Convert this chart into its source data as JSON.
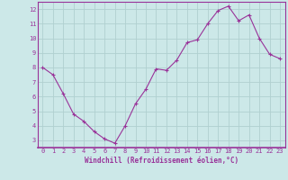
{
  "x": [
    0,
    1,
    2,
    3,
    4,
    5,
    6,
    7,
    8,
    9,
    10,
    11,
    12,
    13,
    14,
    15,
    16,
    17,
    18,
    19,
    20,
    21,
    22,
    23
  ],
  "y": [
    8.0,
    7.5,
    6.2,
    4.8,
    4.3,
    3.6,
    3.1,
    2.8,
    4.0,
    5.5,
    6.5,
    7.9,
    7.8,
    8.5,
    9.7,
    9.9,
    11.0,
    11.9,
    12.2,
    11.2,
    11.6,
    10.0,
    8.9,
    8.6
  ],
  "line_color": "#993399",
  "marker": "+",
  "marker_size": 3,
  "linewidth": 0.8,
  "xlabel": "Windchill (Refroidissement éolien,°C)",
  "xlabel_fontsize": 5.5,
  "xlim": [
    -0.5,
    23.5
  ],
  "ylim": [
    2.5,
    12.5
  ],
  "yticks": [
    3,
    4,
    5,
    6,
    7,
    8,
    9,
    10,
    11,
    12
  ],
  "xticks": [
    0,
    1,
    2,
    3,
    4,
    5,
    6,
    7,
    8,
    9,
    10,
    11,
    12,
    13,
    14,
    15,
    16,
    17,
    18,
    19,
    20,
    21,
    22,
    23
  ],
  "background_color": "#cce8e8",
  "grid_color": "#b0d0d0",
  "tick_color": "#993399",
  "tick_fontsize": 5.0,
  "spine_color": "#993399"
}
